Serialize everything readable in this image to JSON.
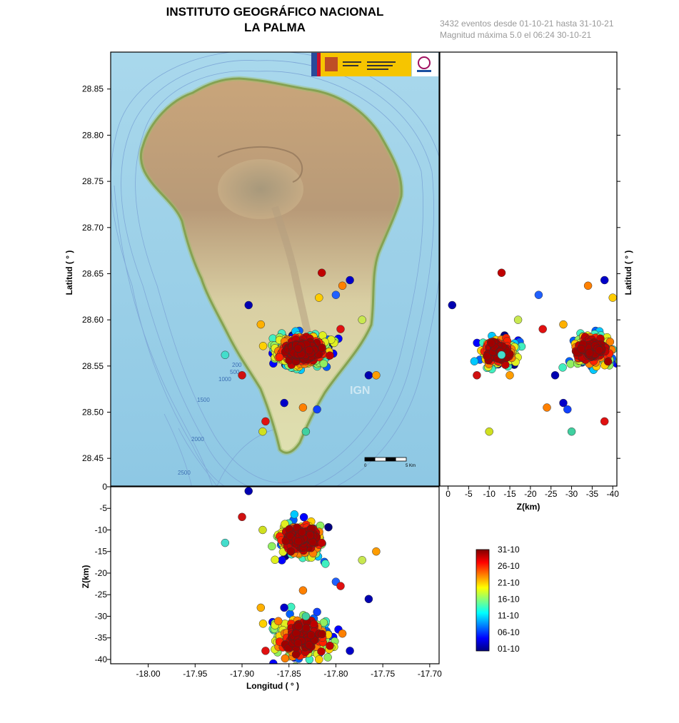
{
  "header": {
    "title_line1": "INSTITUTO GEOGRÁFICO NACIONAL",
    "title_line2": "LA PALMA",
    "info_line1": "3432 eventos desde 01-10-21 hasta 31-10-21",
    "info_line2": "Magnitud máxima 5.0 el 06:24 30-10-21"
  },
  "map": {
    "bathymetry_labels": [
      "200",
      "500",
      "1000",
      "1500",
      "2000",
      "2500"
    ],
    "scalebar_labels": [
      "0",
      "5 Km"
    ],
    "watermark": "IGN"
  },
  "chart_data": [
    {
      "type": "scatter",
      "name": "map",
      "xlabel": "",
      "ylabel": "Latitud ( ° )",
      "xlim": [
        -18.04,
        -17.69
      ],
      "ylim": [
        28.42,
        28.89
      ],
      "yticks": [
        28.45,
        28.5,
        28.55,
        28.6,
        28.65,
        28.7,
        28.75,
        28.8,
        28.85
      ],
      "ytick_labels": [
        "28.45",
        "28.50",
        "28.55",
        "28.60",
        "28.65",
        "28.70",
        "28.75",
        "28.80",
        "28.85"
      ]
    },
    {
      "type": "scatter",
      "name": "depth-vs-latitude",
      "xlabel": "Z(km)",
      "ylabel": "Latitud ( ° )",
      "xlim": [
        2,
        -41
      ],
      "ylim": [
        28.42,
        28.89
      ],
      "xticks": [
        0,
        -5,
        -10,
        -15,
        -20,
        -25,
        -30,
        -35,
        -40
      ],
      "xtick_labels": [
        "0",
        "-5",
        "-10",
        "-15",
        "-20",
        "-25",
        "-30",
        "-35",
        "-40"
      ]
    },
    {
      "type": "scatter",
      "name": "longitude-vs-depth",
      "xlabel": "Longitud ( ° )",
      "ylabel": "Z(km)",
      "xlim": [
        -18.04,
        -17.69
      ],
      "ylim": [
        -41,
        0
      ],
      "xticks": [
        -18.0,
        -17.95,
        -17.9,
        -17.85,
        -17.8,
        -17.75,
        -17.7
      ],
      "xtick_labels": [
        "-18.00",
        "-17.95",
        "-17.90",
        "-17.85",
        "-17.80",
        "-17.75",
        "-17.70"
      ],
      "yticks": [
        0,
        -5,
        -10,
        -15,
        -20,
        -25,
        -30,
        -35,
        -40
      ],
      "ytick_labels": [
        "0",
        "-5",
        "-10",
        "-15",
        "-20",
        "-25",
        "-30",
        "-35",
        "-40"
      ]
    }
  ],
  "events": {
    "clusters": [
      {
        "lon": -17.838,
        "lat": 28.565,
        "depth": -12,
        "spread_lon": 0.022,
        "spread_lat": 0.012,
        "spread_depth": 2.2,
        "count": 420
      },
      {
        "lon": -17.835,
        "lat": 28.568,
        "depth": -35,
        "spread_lon": 0.025,
        "spread_lat": 0.015,
        "spread_depth": 2.6,
        "count": 360
      }
    ],
    "outliers": [
      {
        "lon": -17.815,
        "lat": 28.651,
        "depth": -13,
        "color": "#c00000"
      },
      {
        "lon": -17.785,
        "lat": 28.643,
        "depth": -38,
        "color": "#0000c8"
      },
      {
        "lon": -17.893,
        "lat": 28.616,
        "depth": -1,
        "color": "#0000b0"
      },
      {
        "lon": -17.918,
        "lat": 28.562,
        "depth": -13,
        "color": "#44ddcc"
      },
      {
        "lon": -17.875,
        "lat": 28.49,
        "depth": -38,
        "color": "#e01010"
      },
      {
        "lon": -17.878,
        "lat": 28.479,
        "depth": -10,
        "color": "#d0e020"
      },
      {
        "lon": -17.832,
        "lat": 28.479,
        "depth": -30,
        "color": "#40d0a0"
      },
      {
        "lon": -17.765,
        "lat": 28.54,
        "depth": -26,
        "color": "#0000b0"
      },
      {
        "lon": -17.757,
        "lat": 28.54,
        "depth": -15,
        "color": "#ff9d00"
      },
      {
        "lon": -17.793,
        "lat": 28.637,
        "depth": -34,
        "color": "#ff8000"
      },
      {
        "lon": -17.8,
        "lat": 28.627,
        "depth": -22,
        "color": "#2060ff"
      },
      {
        "lon": -17.818,
        "lat": 28.624,
        "depth": -40,
        "color": "#ffcc00"
      },
      {
        "lon": -17.855,
        "lat": 28.51,
        "depth": -28,
        "color": "#0000c8"
      },
      {
        "lon": -17.835,
        "lat": 28.505,
        "depth": -24,
        "color": "#ff8000"
      },
      {
        "lon": -17.82,
        "lat": 28.503,
        "depth": -29,
        "color": "#1040ff"
      },
      {
        "lon": -17.795,
        "lat": 28.59,
        "depth": -23,
        "color": "#e01010"
      },
      {
        "lon": -17.772,
        "lat": 28.6,
        "depth": -17,
        "color": "#c8e850"
      },
      {
        "lon": -17.9,
        "lat": 28.54,
        "depth": -7,
        "color": "#d01010"
      },
      {
        "lon": -17.88,
        "lat": 28.595,
        "depth": -28,
        "color": "#ffb000"
      }
    ],
    "palette": [
      "#00007f",
      "#0000ff",
      "#0060ff",
      "#00c8ff",
      "#40f0c0",
      "#90f060",
      "#e0f020",
      "#ffd000",
      "#ff8000",
      "#ff2000",
      "#c00000",
      "#a00000"
    ]
  },
  "colorbar": {
    "labels": [
      "31-10",
      "26-10",
      "21-10",
      "16-10",
      "11-10",
      "06-10",
      "01-10"
    ],
    "stops": [
      "#7f0000",
      "#ff0000",
      "#ff8000",
      "#ffff00",
      "#80ff80",
      "#00ffff",
      "#0080ff",
      "#0000ff",
      "#00007f"
    ]
  }
}
